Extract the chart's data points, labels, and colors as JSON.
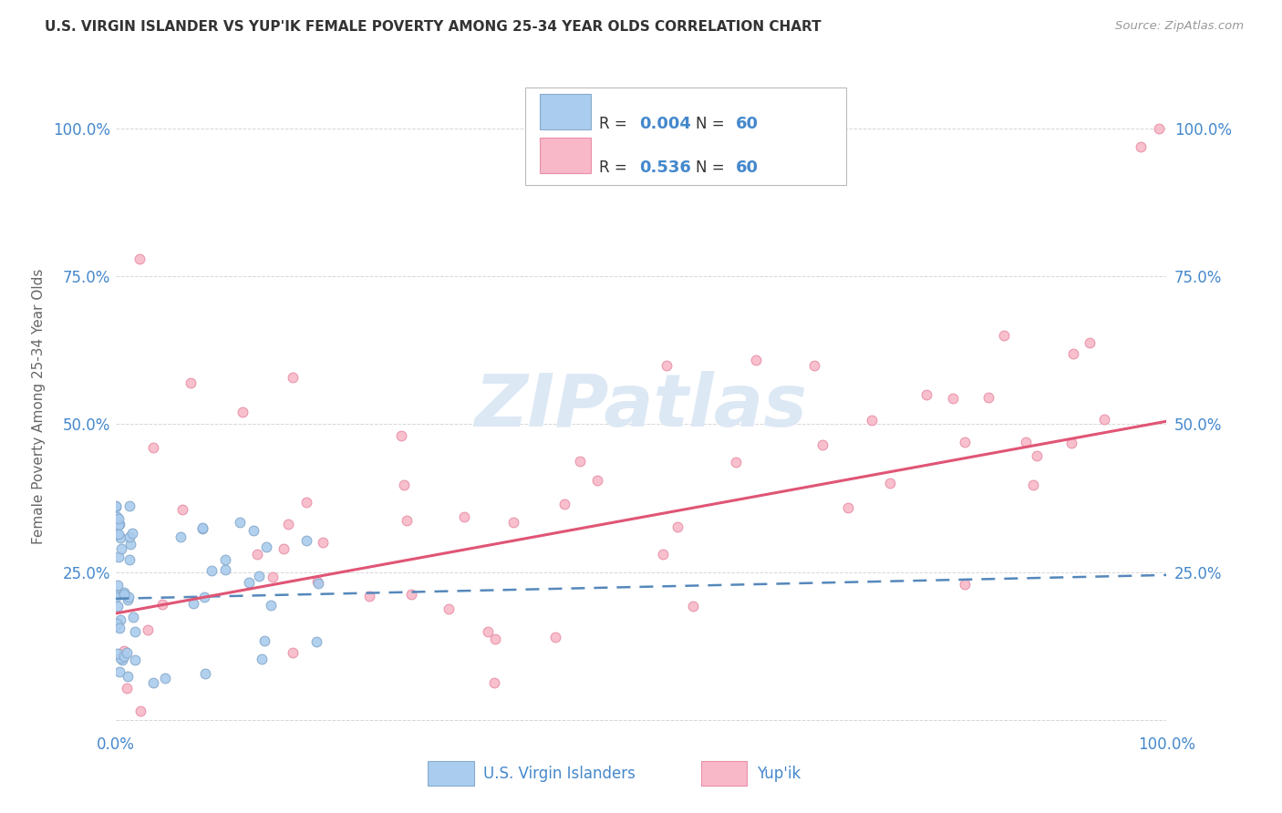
{
  "title": "U.S. VIRGIN ISLANDER VS YUP'IK FEMALE POVERTY AMONG 25-34 YEAR OLDS CORRELATION CHART",
  "source": "Source: ZipAtlas.com",
  "ylabel": "Female Poverty Among 25-34 Year Olds",
  "watermark": "ZIPatlas",
  "xlim": [
    0.0,
    1.0
  ],
  "ylim": [
    -0.02,
    1.08
  ],
  "ytick_positions": [
    0.0,
    0.25,
    0.5,
    0.75,
    1.0
  ],
  "ytick_labels_left": [
    "",
    "25.0%",
    "50.0%",
    "75.0%",
    "100.0%"
  ],
  "ytick_labels_right": [
    "",
    "25.0%",
    "50.0%",
    "75.0%",
    "100.0%"
  ],
  "xtick_positions": [
    0.0,
    1.0
  ],
  "xtick_labels": [
    "0.0%",
    "100.0%"
  ],
  "vi_line_x": [
    0.0,
    1.0
  ],
  "vi_line_y": [
    0.205,
    0.245
  ],
  "yupik_line_x": [
    0.0,
    1.0
  ],
  "yupik_line_y": [
    0.18,
    0.505
  ],
  "dot_size": 60,
  "vi_color": "#aaccee",
  "vi_edge_color": "#88aacc",
  "yupik_color": "#f8b8c8",
  "yupik_edge_color": "#e890a8",
  "vi_line_color": "#5588bb",
  "yupik_line_color": "#e05575",
  "grid_color": "#cccccc",
  "title_color": "#333333",
  "axis_label_color": "#666666",
  "tick_color": "#4488cc",
  "background_color": "#ffffff",
  "watermark_color": "#dde8f5",
  "legend_text_dark": "#333333",
  "legend_text_blue": "#4488cc",
  "source_color": "#999999",
  "legend_r1": "0.004",
  "legend_r2": "0.536",
  "legend_n": "60",
  "bottom_label1": "U.S. Virgin Islanders",
  "bottom_label2": "Yup'ik"
}
